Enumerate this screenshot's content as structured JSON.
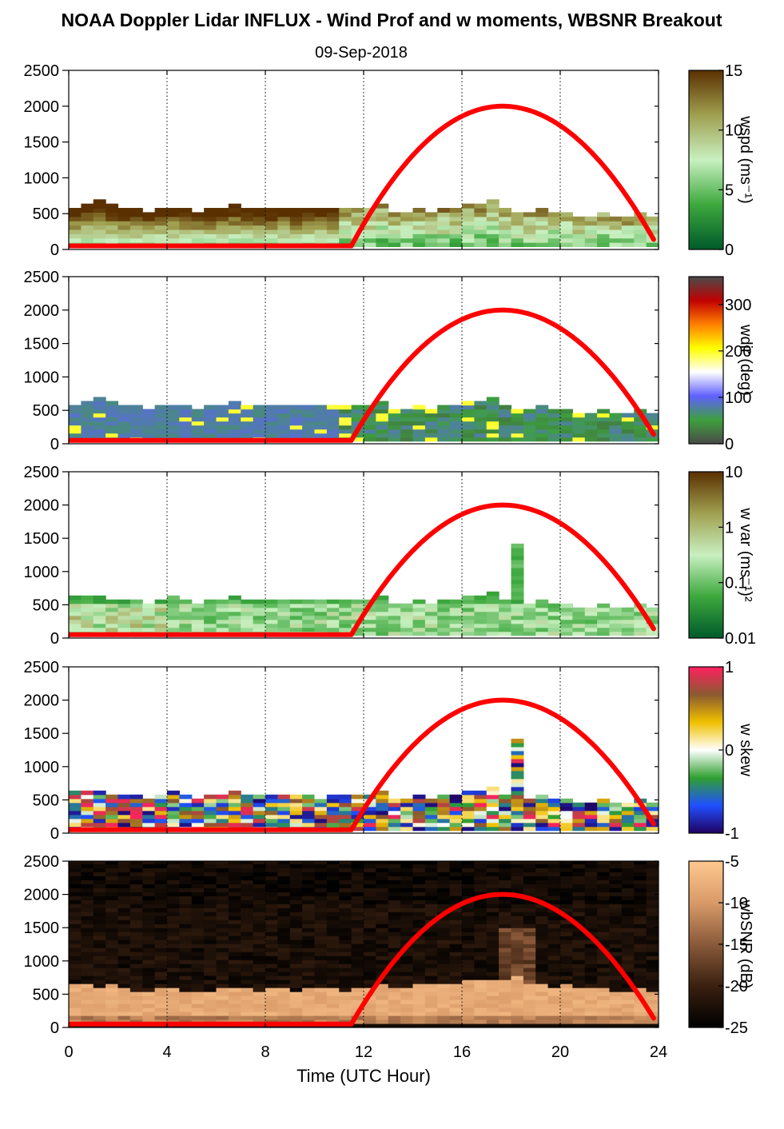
{
  "title": "NOAA Doppler Lidar INFLUX - Wind Prof and w moments, WBSNR Breakout",
  "date": "09-Sep-2018",
  "xlabel": "Time (UTC Hour)",
  "x_ticks": [
    "0",
    "4",
    "8",
    "12",
    "16",
    "20",
    "24"
  ],
  "y_ticks": [
    "0",
    "500",
    "1000",
    "1500",
    "2000",
    "2500"
  ],
  "chart_data": [
    {
      "type": "heatmap",
      "variable": "wspd",
      "colorbar_label": "wspd (ms⁻¹)",
      "colorbar_ticks": [
        "15",
        "10",
        "5",
        "0"
      ],
      "colorbar_range": [
        0,
        15
      ],
      "colors": [
        "#005a2a",
        "#3da83d",
        "#c8f0c0",
        "#a0a050",
        "#5a3000"
      ],
      "xlim": [
        0,
        24
      ],
      "ylim": [
        0,
        2500
      ],
      "top_height": [
        560,
        620,
        680,
        600,
        560,
        540,
        520,
        560,
        580,
        540,
        520,
        540,
        560,
        600,
        560,
        540,
        560,
        560,
        540,
        560,
        580,
        560,
        540,
        560,
        560,
        640,
        500,
        500,
        560,
        520,
        540,
        560,
        600,
        620,
        680,
        560,
        500,
        520,
        560,
        520,
        500,
        440,
        460,
        500,
        420,
        440,
        480,
        460
      ],
      "sun_curve": {
        "x": [
          0,
          11.5,
          12.5,
          14,
          16,
          17.65,
          19.5,
          21.5,
          23.8
        ],
        "y": [
          50,
          50,
          560,
          1320,
          1880,
          2000,
          1820,
          1120,
          140
        ]
      }
    },
    {
      "type": "heatmap",
      "variable": "wdir",
      "colorbar_label": "wdir (deg)",
      "colorbar_ticks": [
        "300",
        "200",
        "100",
        "0"
      ],
      "colorbar_range": [
        0,
        360
      ],
      "colors": [
        "#4a4a4a",
        "#3da03d",
        "#6060ff",
        "#ffffff",
        "#ffff00",
        "#ff8000",
        "#c00000",
        "#4a4a4a"
      ],
      "xlim": [
        0,
        24
      ],
      "ylim": [
        0,
        2500
      ],
      "top_height": [
        560,
        620,
        680,
        600,
        560,
        540,
        520,
        560,
        580,
        540,
        520,
        540,
        560,
        600,
        560,
        540,
        560,
        560,
        540,
        560,
        580,
        560,
        540,
        560,
        560,
        640,
        500,
        500,
        560,
        520,
        540,
        560,
        600,
        620,
        680,
        560,
        500,
        520,
        560,
        520,
        500,
        440,
        460,
        500,
        420,
        440,
        480,
        460
      ],
      "sun_curve": {
        "x": [
          0,
          11.5,
          12.5,
          14,
          16,
          17.65,
          19.5,
          21.5,
          23.8
        ],
        "y": [
          50,
          50,
          560,
          1320,
          1880,
          2000,
          1820,
          1120,
          140
        ]
      }
    },
    {
      "type": "heatmap",
      "variable": "w var",
      "colorbar_label": "w var (ms⁻¹)²",
      "colorbar_ticks": [
        "10",
        "1",
        "0.1",
        "0.01"
      ],
      "colorbar_range": [
        0.01,
        10
      ],
      "log_scale": true,
      "colors": [
        "#005a2a",
        "#3da83d",
        "#c8f0c0",
        "#a0a050",
        "#5a3000"
      ],
      "xlim": [
        0,
        24
      ],
      "ylim": [
        0,
        2500
      ],
      "top_height": [
        600,
        620,
        640,
        580,
        560,
        540,
        520,
        560,
        620,
        540,
        520,
        540,
        560,
        600,
        560,
        540,
        560,
        560,
        540,
        560,
        580,
        560,
        540,
        560,
        560,
        640,
        500,
        500,
        560,
        520,
        540,
        560,
        600,
        620,
        680,
        560,
        1420,
        520,
        560,
        520,
        500,
        440,
        460,
        500,
        420,
        440,
        480,
        460
      ],
      "sun_curve": {
        "x": [
          0,
          11.5,
          12.5,
          14,
          16,
          17.65,
          19.5,
          21.5,
          23.8
        ],
        "y": [
          50,
          50,
          560,
          1320,
          1880,
          2000,
          1820,
          1120,
          140
        ]
      }
    },
    {
      "type": "heatmap",
      "variable": "w skew",
      "colorbar_label": "w skew",
      "colorbar_ticks": [
        "1",
        "0",
        "-1"
      ],
      "colorbar_range": [
        -1,
        1
      ],
      "colors": [
        "#200060",
        "#2050ff",
        "#30a030",
        "#ffffff",
        "#f0c000",
        "#8a5a30",
        "#ff2060"
      ],
      "xlim": [
        0,
        24
      ],
      "ylim": [
        0,
        2500
      ],
      "top_height": [
        600,
        620,
        640,
        580,
        560,
        540,
        520,
        560,
        620,
        540,
        520,
        540,
        560,
        600,
        560,
        540,
        560,
        560,
        540,
        560,
        580,
        560,
        540,
        560,
        560,
        640,
        500,
        500,
        560,
        520,
        540,
        560,
        600,
        620,
        680,
        560,
        1420,
        520,
        560,
        520,
        500,
        440,
        460,
        500,
        420,
        440,
        480,
        460
      ],
      "sun_curve": {
        "x": [
          0,
          11.5,
          12.5,
          14,
          16,
          17.65,
          19.5,
          21.5,
          23.8
        ],
        "y": [
          50,
          50,
          560,
          1320,
          1880,
          2000,
          1820,
          1120,
          140
        ]
      }
    },
    {
      "type": "heatmap",
      "variable": "wbSNR",
      "colorbar_label": "wbSNR (dB)",
      "colorbar_ticks": [
        "-5",
        "-10",
        "-15",
        "-20",
        "-25"
      ],
      "colorbar_range": [
        -25,
        -5
      ],
      "colors": [
        "#000000",
        "#3a2010",
        "#8a5a3a",
        "#d89a68",
        "#ffc890"
      ],
      "xlim": [
        0,
        24
      ],
      "ylim": [
        0,
        2500
      ],
      "top_height": [
        640,
        620,
        600,
        620,
        560,
        540,
        520,
        560,
        580,
        540,
        520,
        540,
        560,
        600,
        560,
        540,
        560,
        560,
        540,
        560,
        580,
        560,
        540,
        560,
        560,
        640,
        600,
        600,
        620,
        620,
        640,
        660,
        700,
        680,
        720,
        680,
        760,
        640,
        640,
        600,
        620,
        560,
        580,
        600,
        520,
        540,
        560,
        540
      ],
      "sun_curve": {
        "x": [
          0,
          11.5,
          12.5,
          14,
          16,
          17.65,
          19.5,
          21.5,
          23.8
        ],
        "y": [
          50,
          50,
          560,
          1320,
          1880,
          2000,
          1820,
          1120,
          140
        ]
      }
    }
  ]
}
